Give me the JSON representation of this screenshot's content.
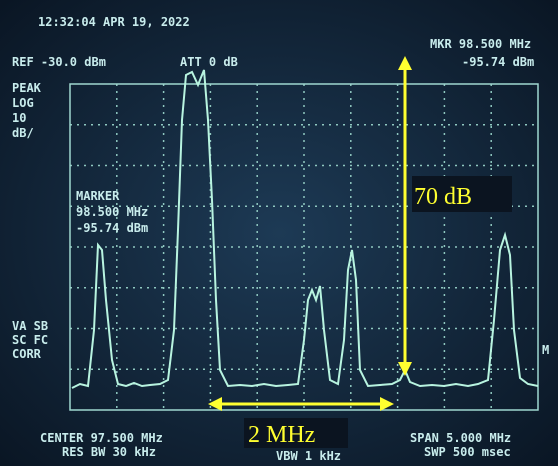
{
  "header": {
    "timestamp": "12:32:04 APR 19, 2022",
    "ref": "REF -30.0 dBm",
    "att": "ATT 0 dB"
  },
  "marker_readout": {
    "label": "MKR 98.500 MHz",
    "value": "-95.74 dBm"
  },
  "scale_labels": [
    "PEAK",
    "LOG",
    "10",
    "dB/"
  ],
  "marker_box": {
    "title": "MARKER",
    "frequency": "98.500 MHz",
    "level": "-95.74 dBm"
  },
  "status_labels": [
    "VA SB",
    "SC FC",
    "CORR"
  ],
  "right_flag": "M",
  "annotations": {
    "vertical": "70 dB",
    "horizontal": "2 MHz"
  },
  "footer": {
    "center": "CENTER 97.500 MHz",
    "res_bw": "RES BW 30 kHz",
    "vbw": "VBW 1 kHz",
    "span": "SPAN 5.000 MHz",
    "sweep": "SWP 500 msec"
  }
}
